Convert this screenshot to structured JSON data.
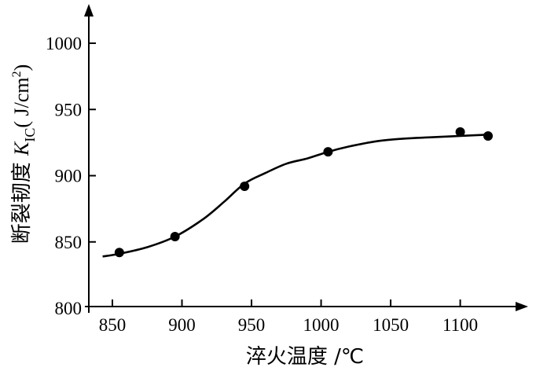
{
  "chart_data": {
    "type": "scatter",
    "title": "",
    "xlabel": "淬火温度 /℃",
    "ylabel": {
      "prefix": "断裂韧度 ",
      "symbol": "K",
      "subscript": "IC",
      "unit_open": "( J/cm",
      "unit_exp": "2",
      "unit_close": ")"
    },
    "xlim": [
      840,
      1130
    ],
    "ylim": [
      800,
      1000
    ],
    "x_ticks": [
      850,
      900,
      950,
      1000,
      1050,
      1100
    ],
    "y_ticks": [
      800,
      850,
      900,
      950,
      1000
    ],
    "grid": false,
    "series": [
      {
        "marker": "filled-circle",
        "x": [
          855,
          895,
          945,
          1005,
          1100,
          1120
        ],
        "y": [
          842,
          854,
          892,
          918,
          933,
          930
        ]
      }
    ],
    "fit_curve": {
      "x": [
        843,
        855,
        875,
        895,
        915,
        930,
        945,
        960,
        975,
        990,
        1005,
        1020,
        1040,
        1060,
        1080,
        1100,
        1120
      ],
      "y": [
        839,
        841,
        846,
        854,
        867,
        880,
        894,
        902,
        909,
        913,
        918,
        922,
        926,
        928,
        929,
        930,
        931
      ]
    }
  }
}
